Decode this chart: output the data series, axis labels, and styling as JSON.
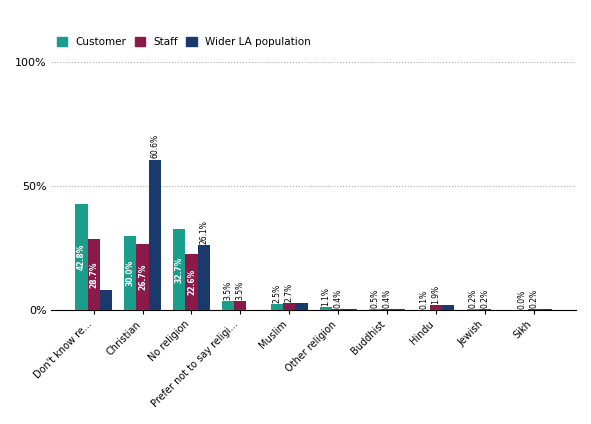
{
  "categories": [
    "Don't know re...",
    "Christian",
    "No religion",
    "Prefer not to say religi...",
    "Muslim",
    "Other religion",
    "Buddhist",
    "Hindu",
    "Jewish",
    "Sikh"
  ],
  "customer": [
    42.8,
    30.0,
    32.7,
    3.5,
    2.5,
    1.1,
    0.5,
    0.1,
    0.2,
    0.0
  ],
  "staff": [
    28.7,
    26.7,
    22.6,
    3.5,
    2.7,
    0.4,
    0.4,
    1.9,
    0.2,
    0.2
  ],
  "wider_la": [
    8.0,
    60.6,
    26.1,
    0.0,
    2.7,
    0.4,
    0.4,
    1.9,
    0.1,
    0.2
  ],
  "customer_labels": [
    "42.8%",
    "30.0%",
    "32.7%",
    "3.5%",
    "2.5%",
    "1.1%",
    "0.5%",
    "0.1%",
    "0.2%",
    "0.0%"
  ],
  "staff_labels": [
    "28.7%",
    "26.7%",
    "22.6%",
    "3.5%",
    "2.7%",
    "0.4%",
    "0.4%",
    "1.9%",
    "0.2%",
    "0.2%"
  ],
  "wider_la_labels": [
    "",
    "60.6%",
    "26.1%",
    "",
    "",
    "",
    "",
    "",
    "",
    ""
  ],
  "customer_color": "#1a9e8c",
  "staff_color": "#8b1a4a",
  "wider_la_color": "#1a3a6e",
  "bar_width": 0.25,
  "ylim": [
    0,
    100
  ],
  "yticks": [
    0,
    50,
    100
  ],
  "ytick_labels": [
    "0%",
    "50%",
    "100%"
  ],
  "legend_labels": [
    "Customer",
    "Staff",
    "Wider LA population"
  ],
  "background_color": "#ffffff",
  "grid_color": "#aaaaaa"
}
